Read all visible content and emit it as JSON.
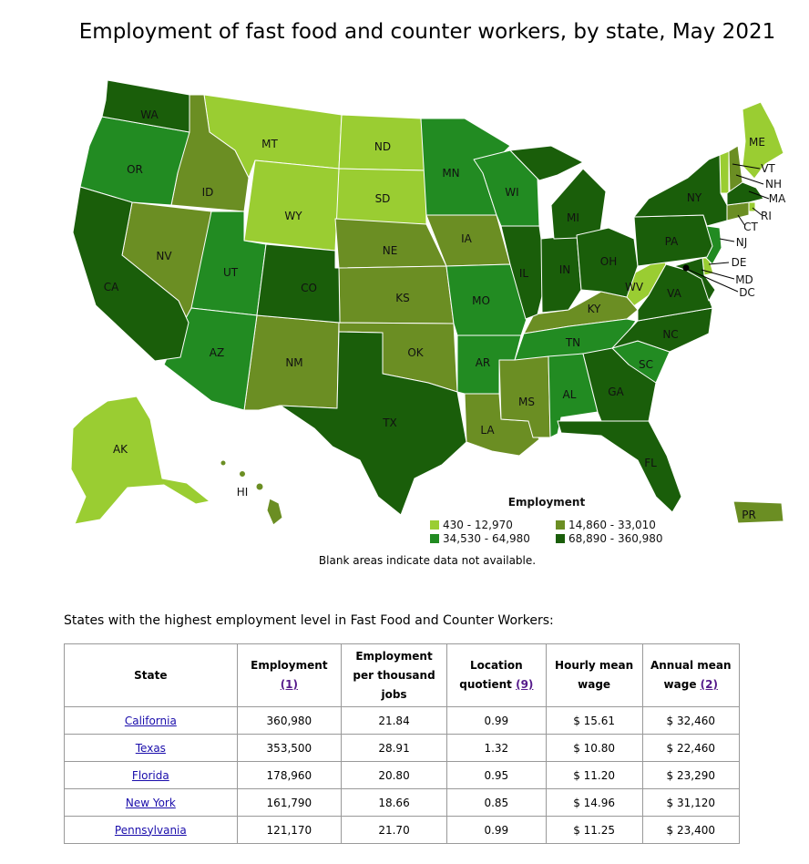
{
  "title": "Employment of fast food and counter workers, by state, May 2021",
  "legend": {
    "title": "Employment",
    "items": [
      {
        "label": "430 - 12,970",
        "color": "#9acd32"
      },
      {
        "label": "14,860 - 33,010",
        "color": "#6b8e23"
      },
      {
        "label": "34,530 - 64,980",
        "color": "#228b22"
      },
      {
        "label": "68,890 - 360,980",
        "color": "#1a5e0a"
      }
    ]
  },
  "note": "Blank areas indicate data not available.",
  "states": [
    "WA",
    "OR",
    "CA",
    "ID",
    "NV",
    "MT",
    "WY",
    "UT",
    "AZ",
    "CO",
    "NM",
    "ND",
    "SD",
    "NE",
    "KS",
    "OK",
    "TX",
    "MN",
    "IA",
    "MO",
    "AR",
    "LA",
    "WI",
    "IL",
    "MI",
    "IN",
    "OH",
    "KY",
    "TN",
    "MS",
    "AL",
    "GA",
    "FL",
    "SC",
    "NC",
    "VA",
    "WV",
    "PA",
    "NY",
    "ME",
    "VT",
    "NH",
    "MA",
    "RI",
    "CT",
    "NJ",
    "DE",
    "MD",
    "DC",
    "AK",
    "HI",
    "PR"
  ],
  "table": {
    "caption": "States with the highest employment level in Fast Food and Counter Workers:",
    "headers": {
      "state": "State",
      "employment": "Employment",
      "employment_ref": "(1)",
      "per_thousand": "Employment per thousand jobs",
      "lq": "Location quotient",
      "lq_ref": "(9)",
      "hourly": "Hourly mean wage",
      "annual": "Annual mean wage",
      "annual_ref": "(2)"
    },
    "rows": [
      {
        "state": "California",
        "employment": "360,980",
        "per_thousand": "21.84",
        "lq": "0.99",
        "hourly": "$ 15.61",
        "annual": "$ 32,460"
      },
      {
        "state": "Texas",
        "employment": "353,500",
        "per_thousand": "28.91",
        "lq": "1.32",
        "hourly": "$ 10.80",
        "annual": "$ 22,460"
      },
      {
        "state": "Florida",
        "employment": "178,960",
        "per_thousand": "20.80",
        "lq": "0.95",
        "hourly": "$ 11.20",
        "annual": "$ 23,290"
      },
      {
        "state": "New York",
        "employment": "161,790",
        "per_thousand": "18.66",
        "lq": "0.85",
        "hourly": "$ 14.96",
        "annual": "$ 31,120"
      },
      {
        "state": "Pennsylvania",
        "employment": "121,170",
        "per_thousand": "21.70",
        "lq": "0.99",
        "hourly": "$ 11.25",
        "annual": "$ 23,400"
      }
    ]
  }
}
